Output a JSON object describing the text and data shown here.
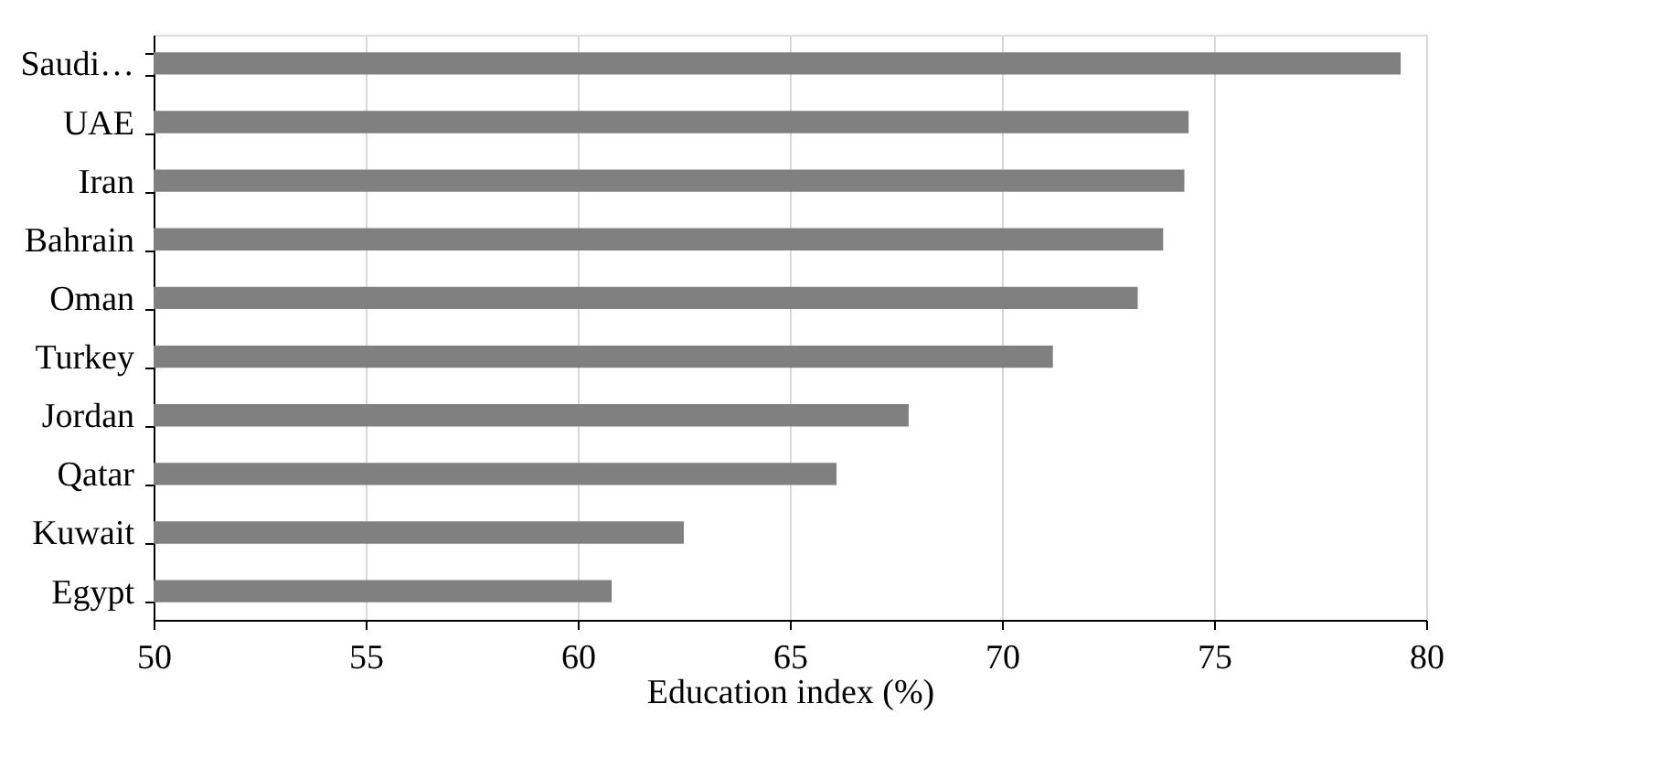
{
  "chart_data": {
    "type": "bar",
    "orientation": "horizontal",
    "xlabel": "Education index (%)",
    "categories": [
      "Saudi…",
      "UAE",
      "Iran",
      "Bahrain",
      "Oman",
      "Turkey",
      "Jordan",
      "Qatar",
      "Kuwait",
      "Egypt"
    ],
    "values": [
      79.4,
      74.4,
      74.3,
      73.8,
      73.2,
      71.2,
      67.8,
      66.1,
      62.5,
      60.8
    ],
    "color": "#808080",
    "xlim": [
      50,
      80
    ],
    "xticks": [
      50,
      55,
      60,
      65,
      70,
      75,
      80
    ],
    "grid": "x"
  }
}
